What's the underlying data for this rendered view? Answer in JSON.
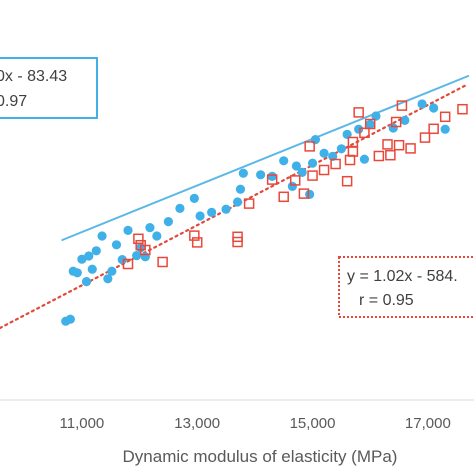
{
  "chart_data": {
    "type": "scatter",
    "title": "",
    "xlabel": "Dynamic modulus of elasticity (MPa)",
    "ylabel": "",
    "xlim": [
      9580,
      17800
    ],
    "ylim": [
      0,
      1
    ],
    "x_ticks": [
      11000,
      13000,
      15000,
      17000
    ],
    "x_tick_labels": [
      "11,000",
      "13,000",
      "15,000",
      "17,000"
    ],
    "grid": false,
    "legend": "none",
    "series": [
      {
        "marker": "filled-circle",
        "color": "#3FB0E8",
        "trendline": {
          "style": "solid",
          "color": "#5BB8E6",
          "x": [
            10660,
            17700
          ],
          "y": [
            0.4,
            0.81
          ]
        },
        "points": [
          {
            "x": 10720,
            "y": 0.197
          },
          {
            "x": 10800,
            "y": 0.202
          },
          {
            "x": 10850,
            "y": 0.322
          },
          {
            "x": 10920,
            "y": 0.318
          },
          {
            "x": 11000,
            "y": 0.352
          },
          {
            "x": 11080,
            "y": 0.296
          },
          {
            "x": 11120,
            "y": 0.36
          },
          {
            "x": 11180,
            "y": 0.327
          },
          {
            "x": 11250,
            "y": 0.373
          },
          {
            "x": 11350,
            "y": 0.41
          },
          {
            "x": 11450,
            "y": 0.303
          },
          {
            "x": 11520,
            "y": 0.322
          },
          {
            "x": 11600,
            "y": 0.388
          },
          {
            "x": 11700,
            "y": 0.351
          },
          {
            "x": 11800,
            "y": 0.424
          },
          {
            "x": 11950,
            "y": 0.361
          },
          {
            "x": 12020,
            "y": 0.381
          },
          {
            "x": 12100,
            "y": 0.358
          },
          {
            "x": 12180,
            "y": 0.431
          },
          {
            "x": 12300,
            "y": 0.41
          },
          {
            "x": 12500,
            "y": 0.446
          },
          {
            "x": 12700,
            "y": 0.479
          },
          {
            "x": 12950,
            "y": 0.504
          },
          {
            "x": 13050,
            "y": 0.46
          },
          {
            "x": 13250,
            "y": 0.469
          },
          {
            "x": 13500,
            "y": 0.477
          },
          {
            "x": 13700,
            "y": 0.495
          },
          {
            "x": 13750,
            "y": 0.527
          },
          {
            "x": 13800,
            "y": 0.567
          },
          {
            "x": 14100,
            "y": 0.563
          },
          {
            "x": 14300,
            "y": 0.559
          },
          {
            "x": 14500,
            "y": 0.598
          },
          {
            "x": 14650,
            "y": 0.534
          },
          {
            "x": 14720,
            "y": 0.585
          },
          {
            "x": 14820,
            "y": 0.569
          },
          {
            "x": 14950,
            "y": 0.514
          },
          {
            "x": 15000,
            "y": 0.592
          },
          {
            "x": 15050,
            "y": 0.651
          },
          {
            "x": 15200,
            "y": 0.617
          },
          {
            "x": 15350,
            "y": 0.609
          },
          {
            "x": 15500,
            "y": 0.628
          },
          {
            "x": 15600,
            "y": 0.664
          },
          {
            "x": 15800,
            "y": 0.677
          },
          {
            "x": 15900,
            "y": 0.602
          },
          {
            "x": 16000,
            "y": 0.689
          },
          {
            "x": 16100,
            "y": 0.71
          },
          {
            "x": 16400,
            "y": 0.68
          },
          {
            "x": 16600,
            "y": 0.699
          },
          {
            "x": 16900,
            "y": 0.74
          },
          {
            "x": 17100,
            "y": 0.73
          },
          {
            "x": 17300,
            "y": 0.677
          }
        ]
      },
      {
        "marker": "open-square",
        "color": "#E8483A",
        "trendline": {
          "style": "dotted",
          "color": "#E04A3A",
          "x": [
            9580,
            17700
          ],
          "y": [
            0.18,
            0.79
          ]
        },
        "points": [
          {
            "x": 11980,
            "y": 0.403
          },
          {
            "x": 12020,
            "y": 0.387
          },
          {
            "x": 12100,
            "y": 0.375
          },
          {
            "x": 11800,
            "y": 0.34
          },
          {
            "x": 12400,
            "y": 0.345
          },
          {
            "x": 12950,
            "y": 0.411
          },
          {
            "x": 13000,
            "y": 0.394
          },
          {
            "x": 13700,
            "y": 0.408
          },
          {
            "x": 13700,
            "y": 0.395
          },
          {
            "x": 13900,
            "y": 0.491
          },
          {
            "x": 14300,
            "y": 0.551
          },
          {
            "x": 14500,
            "y": 0.508
          },
          {
            "x": 14700,
            "y": 0.549
          },
          {
            "x": 15000,
            "y": 0.561
          },
          {
            "x": 14950,
            "y": 0.634
          },
          {
            "x": 14850,
            "y": 0.516
          },
          {
            "x": 15200,
            "y": 0.575
          },
          {
            "x": 15400,
            "y": 0.59
          },
          {
            "x": 15600,
            "y": 0.547
          },
          {
            "x": 15650,
            "y": 0.6
          },
          {
            "x": 15700,
            "y": 0.621
          },
          {
            "x": 15700,
            "y": 0.645
          },
          {
            "x": 15800,
            "y": 0.719
          },
          {
            "x": 15900,
            "y": 0.668
          },
          {
            "x": 16000,
            "y": 0.69
          },
          {
            "x": 16150,
            "y": 0.61
          },
          {
            "x": 16300,
            "y": 0.639
          },
          {
            "x": 16350,
            "y": 0.612
          },
          {
            "x": 16450,
            "y": 0.695
          },
          {
            "x": 16500,
            "y": 0.637
          },
          {
            "x": 16550,
            "y": 0.736
          },
          {
            "x": 16700,
            "y": 0.629
          },
          {
            "x": 16950,
            "y": 0.656
          },
          {
            "x": 17100,
            "y": 0.678
          },
          {
            "x": 17300,
            "y": 0.708
          },
          {
            "x": 17600,
            "y": 0.727
          }
        ]
      }
    ],
    "annotations": [
      {
        "id": "left",
        "lines": [
          "0x - 83.43",
          "0.97"
        ],
        "border_color": "#3FB0E8",
        "border_style": "solid"
      },
      {
        "id": "right",
        "lines": [
          "y = 1.02x - 584.",
          "r = 0.95"
        ],
        "border_color": "#E8483A",
        "border_style": "dotted"
      }
    ]
  }
}
